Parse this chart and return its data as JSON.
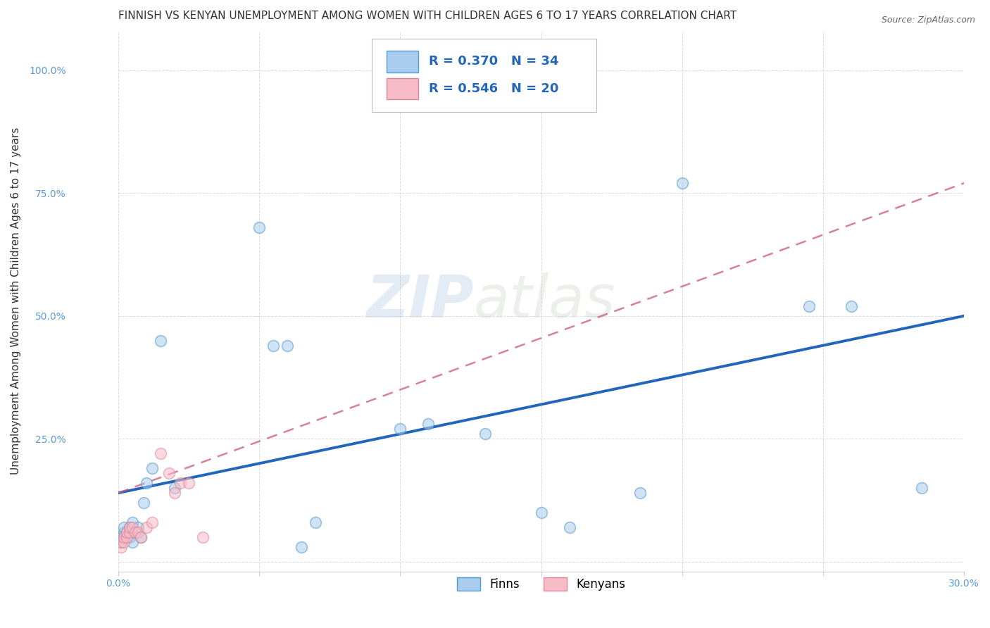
{
  "title": "FINNISH VS KENYAN UNEMPLOYMENT AMONG WOMEN WITH CHILDREN AGES 6 TO 17 YEARS CORRELATION CHART",
  "source": "Source: ZipAtlas.com",
  "tick_color": "#5b9bd5",
  "ylabel": "Unemployment Among Women with Children Ages 6 to 17 years",
  "xlim": [
    0.0,
    0.3
  ],
  "ylim": [
    -0.02,
    1.08
  ],
  "xticks": [
    0.0,
    0.05,
    0.1,
    0.15,
    0.2,
    0.25,
    0.3
  ],
  "yticks": [
    0.0,
    0.25,
    0.5,
    0.75,
    1.0
  ],
  "ytick_labels": [
    "",
    "25.0%",
    "50.0%",
    "75.0%",
    "100.0%"
  ],
  "xtick_labels": [
    "0.0%",
    "",
    "",
    "",
    "",
    "",
    "30.0%"
  ],
  "watermark_zip": "ZIP",
  "watermark_atlas": "atlas",
  "finns_R": 0.37,
  "finns_N": 34,
  "kenyans_R": 0.546,
  "kenyans_N": 20,
  "finns_color": "#aaccee",
  "finns_edge_color": "#5599cc",
  "finns_line_color": "#2266bb",
  "kenyans_color": "#f8bbc8",
  "kenyans_edge_color": "#dd8899",
  "kenyans_line_color": "#cc5577",
  "finns_x": [
    0.001,
    0.001,
    0.002,
    0.002,
    0.002,
    0.003,
    0.003,
    0.004,
    0.004,
    0.005,
    0.005,
    0.006,
    0.007,
    0.008,
    0.009,
    0.01,
    0.012,
    0.015,
    0.02,
    0.05,
    0.055,
    0.06,
    0.065,
    0.07,
    0.1,
    0.11,
    0.13,
    0.15,
    0.16,
    0.185,
    0.2,
    0.245,
    0.26,
    0.285
  ],
  "finns_y": [
    0.04,
    0.05,
    0.05,
    0.06,
    0.07,
    0.05,
    0.06,
    0.05,
    0.07,
    0.04,
    0.08,
    0.06,
    0.07,
    0.05,
    0.12,
    0.16,
    0.19,
    0.45,
    0.15,
    0.68,
    0.44,
    0.44,
    0.03,
    0.08,
    0.27,
    0.28,
    0.26,
    0.1,
    0.07,
    0.14,
    0.77,
    0.52,
    0.52,
    0.15
  ],
  "kenyans_x": [
    0.001,
    0.001,
    0.002,
    0.002,
    0.003,
    0.003,
    0.004,
    0.004,
    0.005,
    0.006,
    0.007,
    0.008,
    0.01,
    0.012,
    0.015,
    0.018,
    0.02,
    0.022,
    0.025,
    0.03
  ],
  "kenyans_y": [
    0.03,
    0.04,
    0.04,
    0.05,
    0.05,
    0.06,
    0.06,
    0.07,
    0.07,
    0.06,
    0.06,
    0.05,
    0.07,
    0.08,
    0.22,
    0.18,
    0.14,
    0.16,
    0.16,
    0.05
  ],
  "finns_line_x": [
    0.0,
    0.3
  ],
  "finns_line_y": [
    0.14,
    0.5
  ],
  "kenyans_line_x": [
    0.0,
    0.3
  ],
  "kenyans_line_y": [
    0.14,
    0.77
  ],
  "background_color": "#ffffff",
  "grid_color": "#cccccc",
  "title_fontsize": 11,
  "axis_label_fontsize": 11,
  "tick_fontsize": 10,
  "scatter_size": 130,
  "scatter_alpha": 0.55,
  "scatter_linewidth": 1.2
}
